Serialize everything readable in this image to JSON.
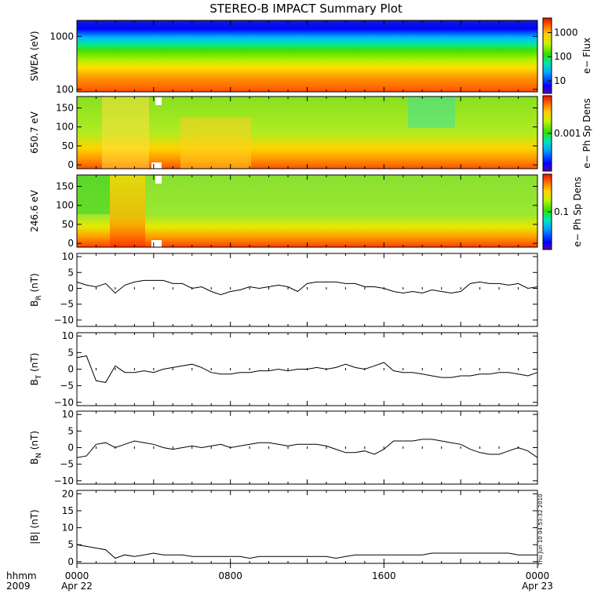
{
  "title": "STEREO-B IMPACT Summary Plot",
  "stamp": "Thu Jun 10 04:53:32 2010",
  "time_axis": {
    "corner_top": "hhmm",
    "corner_bottom": "2009",
    "ticks": [
      {
        "label": "0000",
        "sublabel": "Apr 22",
        "hour": 0
      },
      {
        "label": "0800",
        "sublabel": "",
        "hour": 8
      },
      {
        "label": "1600",
        "sublabel": "",
        "hour": 16
      },
      {
        "label": "0000",
        "sublabel": "Apr 23",
        "hour": 24
      }
    ],
    "range_hours": [
      0,
      24
    ]
  },
  "colors": {
    "line": "#000000",
    "axis": "#000000",
    "background": "#ffffff"
  },
  "chart_data": [
    {
      "type": "heatmap",
      "ylabel": "SWEA (eV)",
      "yscale": "log",
      "ylim": [
        90,
        2000
      ],
      "yticks": [
        {
          "v": 1000,
          "label": "1000"
        },
        {
          "v": 100,
          "label": "100"
        }
      ],
      "colorbar": {
        "label": "e− Flux",
        "scale": "log",
        "range": [
          3,
          4000
        ],
        "ticks": [
          {
            "v": 1000,
            "label": "1000"
          },
          {
            "v": 100,
            "label": "100"
          },
          {
            "v": 10,
            "label": "10"
          }
        ]
      }
    },
    {
      "type": "heatmap",
      "ylabel": "650.7 eV",
      "ylim": [
        -10,
        180
      ],
      "yticks": [
        {
          "v": 150,
          "label": "150"
        },
        {
          "v": 100,
          "label": "100"
        },
        {
          "v": 50,
          "label": "50"
        },
        {
          "v": 0,
          "label": "0"
        }
      ],
      "colorbar": {
        "label": "e− Ph Sp Dens",
        "scale": "log",
        "range": [
          0.0001,
          0.01
        ],
        "ticks": [
          {
            "v": 0.001,
            "label": "0.001"
          }
        ]
      }
    },
    {
      "type": "heatmap",
      "ylabel": "246.6 eV",
      "ylim": [
        -10,
        180
      ],
      "yticks": [
        {
          "v": 150,
          "label": "150"
        },
        {
          "v": 100,
          "label": "100"
        },
        {
          "v": 50,
          "label": "50"
        },
        {
          "v": 0,
          "label": "0"
        }
      ],
      "colorbar": {
        "label": "e− Ph Sp Dens",
        "scale": "log",
        "range": [
          0.01,
          1
        ],
        "ticks": [
          {
            "v": 0.1,
            "label": "0.1"
          }
        ]
      }
    },
    {
      "type": "line",
      "ylabel_main": "B",
      "ylabel_sub": "R",
      "ylabel_unit": " (nT)",
      "ylim": [
        -12,
        11
      ],
      "yticks": [
        {
          "v": 10,
          "label": "10"
        },
        {
          "v": 5,
          "label": "5"
        },
        {
          "v": 0,
          "label": "0"
        },
        {
          "v": -5,
          "label": "−5"
        },
        {
          "v": -10,
          "label": "−10"
        }
      ],
      "x": [
        0,
        0.5,
        1,
        1.5,
        2,
        2.5,
        3,
        3.5,
        4,
        4.5,
        5,
        5.5,
        6,
        6.5,
        7,
        7.5,
        8,
        8.5,
        9,
        9.5,
        10,
        10.5,
        11,
        11.5,
        12,
        12.5,
        13,
        13.5,
        14,
        14.5,
        15,
        15.5,
        16,
        16.5,
        17,
        17.5,
        18,
        18.5,
        19,
        19.5,
        20,
        20.5,
        21,
        21.5,
        22,
        22.5,
        23,
        23.5,
        24
      ],
      "values": [
        2,
        1,
        0.5,
        1.5,
        -1.5,
        1,
        2,
        2.5,
        2.5,
        2.5,
        1.5,
        1.5,
        0,
        0.5,
        -1,
        -2,
        -1,
        -0.5,
        0.5,
        0,
        0.5,
        1,
        0.5,
        -1,
        1.5,
        2,
        2,
        2,
        1.5,
        1.5,
        0.5,
        0.5,
        0,
        -1,
        -1.5,
        -1,
        -1.5,
        -0.5,
        -1,
        -1.5,
        -1,
        1.5,
        2,
        1.5,
        1.5,
        1,
        1.5,
        0,
        0.5
      ]
    },
    {
      "type": "line",
      "ylabel_main": "B",
      "ylabel_sub": "T",
      "ylabel_unit": " (nT)",
      "ylim": [
        -11,
        11
      ],
      "yticks": [
        {
          "v": 10,
          "label": "10"
        },
        {
          "v": 5,
          "label": "5"
        },
        {
          "v": 0,
          "label": "0"
        },
        {
          "v": -5,
          "label": "−5"
        },
        {
          "v": -10,
          "label": "−10"
        }
      ],
      "x": [
        0,
        0.5,
        1,
        1.5,
        2,
        2.5,
        3,
        3.5,
        4,
        4.5,
        5,
        5.5,
        6,
        6.5,
        7,
        7.5,
        8,
        8.5,
        9,
        9.5,
        10,
        10.5,
        11,
        11.5,
        12,
        12.5,
        13,
        13.5,
        14,
        14.5,
        15,
        15.5,
        16,
        16.5,
        17,
        17.5,
        18,
        18.5,
        19,
        19.5,
        20,
        20.5,
        21,
        21.5,
        22,
        22.5,
        23,
        23.5,
        24
      ],
      "values": [
        3.5,
        4,
        -3.5,
        -4,
        1,
        -1,
        -1,
        -0.5,
        -1,
        0,
        0.5,
        1,
        1.5,
        0.5,
        -1,
        -1.5,
        -1.5,
        -1,
        -1,
        -0.5,
        -0.5,
        0,
        -0.5,
        0,
        0,
        0.5,
        0,
        0.5,
        1.5,
        0.5,
        0,
        1,
        2,
        -0.5,
        -1,
        -1,
        -1.5,
        -2,
        -2.5,
        -2.5,
        -2,
        -2,
        -1.5,
        -1.5,
        -1,
        -1,
        -1.5,
        -2,
        -1
      ]
    },
    {
      "type": "line",
      "ylabel_main": "B",
      "ylabel_sub": "N",
      "ylabel_unit": " (nT)",
      "ylim": [
        -11,
        11
      ],
      "yticks": [
        {
          "v": 10,
          "label": "10"
        },
        {
          "v": 5,
          "label": "5"
        },
        {
          "v": 0,
          "label": "0"
        },
        {
          "v": -5,
          "label": "−5"
        },
        {
          "v": -10,
          "label": "−10"
        }
      ],
      "x": [
        0,
        0.5,
        1,
        1.5,
        2,
        2.5,
        3,
        3.5,
        4,
        4.5,
        5,
        5.5,
        6,
        6.5,
        7,
        7.5,
        8,
        8.5,
        9,
        9.5,
        10,
        10.5,
        11,
        11.5,
        12,
        12.5,
        13,
        13.5,
        14,
        14.5,
        15,
        15.5,
        16,
        16.5,
        17,
        17.5,
        18,
        18.5,
        19,
        19.5,
        20,
        20.5,
        21,
        21.5,
        22,
        22.5,
        23,
        23.5,
        24
      ],
      "values": [
        -3,
        -2.5,
        1,
        1.5,
        0,
        1,
        2,
        1.5,
        1,
        0,
        -0.5,
        0,
        0.5,
        0,
        0.5,
        1,
        0,
        0.5,
        1,
        1.5,
        1.5,
        1,
        0.5,
        1,
        1,
        1,
        0.5,
        -0.5,
        -1.5,
        -1.5,
        -1,
        -2,
        -0.5,
        2,
        2,
        2,
        2.5,
        2.5,
        2,
        1.5,
        1,
        -0.5,
        -1.5,
        -2,
        -2,
        -1,
        0,
        -1,
        -3
      ]
    },
    {
      "type": "line",
      "ylabel_main": "|B| (nT)",
      "ylabel_sub": "",
      "ylabel_unit": "",
      "ylim": [
        -0.5,
        21
      ],
      "yticks": [
        {
          "v": 20,
          "label": "20"
        },
        {
          "v": 15,
          "label": "15"
        },
        {
          "v": 10,
          "label": "10"
        },
        {
          "v": 5,
          "label": "5"
        },
        {
          "v": 0,
          "label": "0"
        }
      ],
      "x": [
        0,
        0.5,
        1,
        1.5,
        2,
        2.5,
        3,
        3.5,
        4,
        4.5,
        5,
        5.5,
        6,
        6.5,
        7,
        7.5,
        8,
        8.5,
        9,
        9.5,
        10,
        10.5,
        11,
        11.5,
        12,
        12.5,
        13,
        13.5,
        14,
        14.5,
        15,
        15.5,
        16,
        16.5,
        17,
        17.5,
        18,
        18.5,
        19,
        19.5,
        20,
        20.5,
        21,
        21.5,
        22,
        22.5,
        23,
        23.5,
        24
      ],
      "values": [
        5,
        4.5,
        4,
        3.5,
        1,
        2,
        1.5,
        2,
        2.5,
        2,
        2,
        2,
        1.5,
        1.5,
        1.5,
        1.5,
        1.5,
        1.5,
        1,
        1.5,
        1.5,
        1.5,
        1.5,
        1.5,
        1.5,
        1.5,
        1.5,
        1,
        1.5,
        2,
        2,
        2,
        2,
        2,
        2,
        2,
        2,
        2.5,
        2.5,
        2.5,
        2.5,
        2.5,
        2.5,
        2.5,
        2.5,
        2.5,
        2,
        2,
        2
      ]
    }
  ]
}
